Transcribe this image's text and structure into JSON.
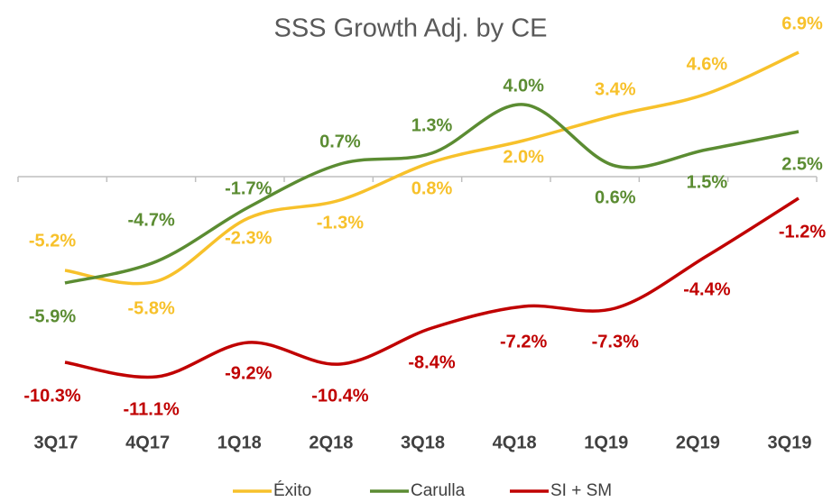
{
  "chart_data": {
    "type": "line",
    "title": "SSS Growth Adj. by CE",
    "categories": [
      "3Q17",
      "4Q17",
      "1Q18",
      "2Q18",
      "3Q18",
      "4Q18",
      "1Q19",
      "2Q19",
      "3Q19"
    ],
    "series": [
      {
        "name": "Éxito",
        "color": "#f7c12b",
        "values": [
          -5.2,
          -5.8,
          -2.3,
          -1.3,
          0.8,
          2.0,
          3.4,
          4.6,
          6.9
        ],
        "value_labels": [
          "-5.2%",
          "-5.8%",
          "-2.3%",
          "-1.3%",
          "0.8%",
          "2.0%",
          "3.4%",
          "4.6%",
          "6.9%"
        ]
      },
      {
        "name": "Carulla",
        "color": "#5b8c32",
        "values": [
          -5.9,
          -4.7,
          -1.7,
          0.7,
          1.3,
          4.0,
          0.6,
          1.5,
          2.5
        ],
        "value_labels": [
          "-5.9%",
          "-4.7%",
          "-1.7%",
          "0.7%",
          "1.3%",
          "4.0%",
          "0.6%",
          "1.5%",
          "2.5%"
        ]
      },
      {
        "name": "SI + SM",
        "color": "#c00000",
        "values": [
          -10.3,
          -11.1,
          -9.2,
          -10.4,
          -8.4,
          -7.2,
          -7.3,
          -4.4,
          -1.2
        ],
        "value_labels": [
          "-10.3%",
          "-11.1%",
          "-9.2%",
          "-10.4%",
          "-8.4%",
          "-7.2%",
          "-7.3%",
          "-4.4%",
          "-1.2%"
        ]
      }
    ],
    "ylim": [
      -12,
      8
    ],
    "legend": "bottom"
  }
}
